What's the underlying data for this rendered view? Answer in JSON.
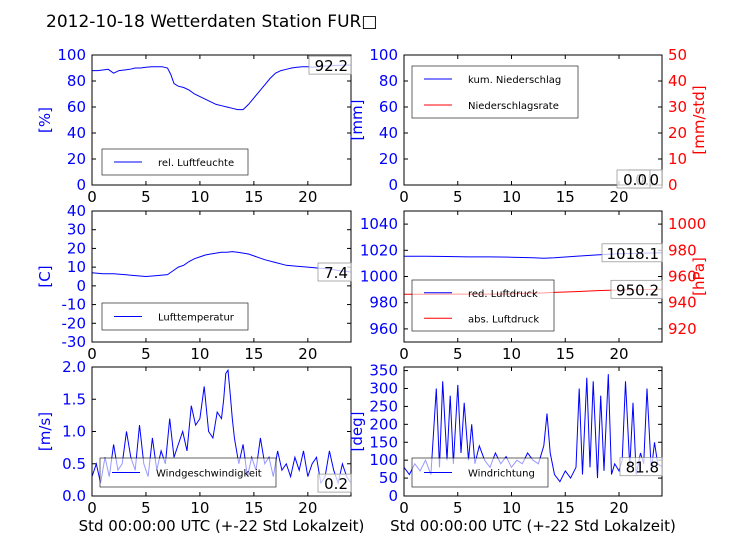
{
  "title": "2012-10-18 Wetterdaten Station FUR□",
  "colors": {
    "primary": "#0000ff",
    "secondary": "#ff0000",
    "axis": "#000000",
    "background": "#ffffff"
  },
  "chart_data": [
    {
      "id": "humidity",
      "type": "line",
      "ylabel": "[%]",
      "xlim": [
        0,
        24
      ],
      "ylim": [
        0,
        100
      ],
      "xticks": [
        0,
        5,
        10,
        15,
        20
      ],
      "yticks": [
        0,
        20,
        40,
        60,
        80,
        100
      ],
      "grid": false,
      "legend": "lower-left",
      "last_value_label": "92.2",
      "series": [
        {
          "name": "rel. Luftfeuchte",
          "color": "#0000ff",
          "x": [
            0,
            0.5,
            1,
            1.5,
            2,
            2.5,
            3,
            3.5,
            4,
            4.5,
            5,
            5.5,
            6,
            6.5,
            7,
            7.3,
            7.6,
            8,
            8.5,
            9,
            9.5,
            10,
            10.5,
            11,
            11.5,
            12,
            12.5,
            13,
            13.5,
            14,
            14.5,
            15,
            15.5,
            16,
            16.5,
            17,
            17.5,
            18,
            18.5,
            19,
            19.5,
            20,
            20.5,
            21,
            21.5,
            22,
            22.5,
            23,
            23.5,
            24
          ],
          "values": [
            88,
            88,
            88.5,
            89,
            86,
            88,
            88.5,
            89,
            90,
            90,
            90.5,
            91,
            91,
            91,
            90,
            85,
            78,
            76,
            75,
            73,
            70,
            68,
            66,
            64,
            62,
            61,
            60,
            59,
            58,
            58,
            62,
            67,
            72,
            77,
            82,
            86,
            88,
            89,
            90,
            90.5,
            91,
            91,
            90.5,
            91,
            91.5,
            91.5,
            92,
            92,
            92.2,
            92.2
          ]
        }
      ]
    },
    {
      "id": "precip",
      "type": "line",
      "ylabel": "[mm]",
      "ylabel_right": "[mm/std]",
      "xlim": [
        0,
        24
      ],
      "ylim": [
        0,
        100
      ],
      "ylim_right": [
        0,
        50
      ],
      "xticks": [
        0,
        5,
        10,
        15,
        20
      ],
      "yticks": [
        0,
        20,
        40,
        60,
        80,
        100
      ],
      "yticks_right": [
        0,
        10,
        20,
        30,
        40,
        50
      ],
      "grid": false,
      "legend": "top-left",
      "last_value_label": "0.0",
      "last_value_label_right": "0.0",
      "series": [
        {
          "name": "kum. Niederschlag",
          "color": "#0000ff",
          "axis": "left",
          "x": [
            0,
            24
          ],
          "values": [
            0,
            0
          ]
        },
        {
          "name": "Niederschlagsrate",
          "color": "#ff0000",
          "axis": "right",
          "x": [
            0,
            24
          ],
          "values": [
            0,
            0
          ]
        }
      ]
    },
    {
      "id": "temperature",
      "type": "line",
      "ylabel": "[C]",
      "xlim": [
        0,
        24
      ],
      "ylim": [
        -30,
        40
      ],
      "xticks": [
        0,
        5,
        10,
        15,
        20
      ],
      "yticks": [
        -30,
        -20,
        -10,
        0,
        10,
        20,
        30,
        40
      ],
      "grid": false,
      "legend": "lower-left",
      "last_value_label": "7.4",
      "series": [
        {
          "name": "Lufttemperatur",
          "color": "#0000ff",
          "x": [
            0,
            1,
            2,
            3,
            4,
            5,
            6,
            7,
            7.5,
            8,
            8.5,
            9,
            9.5,
            10,
            10.5,
            11,
            11.5,
            12,
            12.5,
            13,
            13.5,
            14,
            14.5,
            15,
            15.5,
            16,
            17,
            18,
            19,
            20,
            21,
            22,
            23,
            24
          ],
          "values": [
            7,
            6.5,
            6.5,
            6,
            5.5,
            5,
            5.5,
            6,
            8,
            10,
            11,
            13,
            14.5,
            15.5,
            16.5,
            17,
            17.5,
            18,
            18,
            18.3,
            18,
            17.5,
            17,
            16,
            15,
            14,
            12.5,
            11,
            10.5,
            10,
            9.5,
            9,
            8,
            7.4
          ]
        }
      ]
    },
    {
      "id": "pressure",
      "type": "line",
      "ylabel_right": "[hPa]",
      "xlim": [
        0,
        24
      ],
      "ylim": [
        950,
        1050
      ],
      "ylim_right": [
        910,
        1010
      ],
      "xticks": [
        0,
        5,
        10,
        15,
        20
      ],
      "yticks": [
        960,
        980,
        1000,
        1020,
        1040
      ],
      "yticks_right": [
        920,
        940,
        960,
        980,
        1000
      ],
      "grid": false,
      "legend": "bottom-left",
      "last_value_label": "1018.1",
      "last_value_label_right": "950.2",
      "series": [
        {
          "name": "red. Luftdruck",
          "color": "#0000ff",
          "axis": "left",
          "x": [
            0,
            2,
            4,
            6,
            8,
            10,
            12,
            13,
            14,
            16,
            18,
            20,
            22,
            24
          ],
          "values": [
            1015.5,
            1015.5,
            1015.3,
            1015,
            1015,
            1014.7,
            1014.3,
            1014,
            1014.3,
            1015.5,
            1016.5,
            1017.3,
            1017.8,
            1018.1
          ]
        },
        {
          "name": "abs. Luftdruck",
          "color": "#ff0000",
          "axis": "right",
          "x": [
            0,
            2,
            4,
            6,
            8,
            10,
            12,
            13,
            14,
            16,
            18,
            20,
            22,
            24
          ],
          "values": [
            946.5,
            946.5,
            946.6,
            946.6,
            946.6,
            946.8,
            947.3,
            947.5,
            947.9,
            948.5,
            949.2,
            949.7,
            950,
            950.2
          ]
        }
      ]
    },
    {
      "id": "windspeed",
      "type": "line",
      "ylabel": "[m/s]",
      "xlabel": "Std 00:00:00 UTC (+-22 Std Lokalzeit)",
      "xlim": [
        0,
        24
      ],
      "ylim": [
        0,
        2.0
      ],
      "xticks": [
        0,
        5,
        10,
        15,
        20
      ],
      "yticks": [
        0.0,
        0.5,
        1.0,
        1.5,
        2.0
      ],
      "grid": false,
      "legend": "bottom-center",
      "last_value_label": "0.2",
      "series": [
        {
          "name": "Windgeschwindigkeit",
          "color": "#0000ff",
          "x": [
            0,
            0.4,
            0.8,
            1.2,
            1.6,
            2,
            2.4,
            2.8,
            3.2,
            3.6,
            4,
            4.4,
            4.8,
            5.2,
            5.6,
            6,
            6.4,
            6.8,
            7.2,
            7.6,
            8,
            8.4,
            8.8,
            9.2,
            9.6,
            10,
            10.4,
            10.8,
            11.2,
            11.6,
            12,
            12.2,
            12.4,
            12.6,
            12.8,
            13,
            13.2,
            13.6,
            14,
            14.4,
            14.8,
            15.2,
            15.6,
            16,
            16.4,
            16.8,
            17.2,
            17.6,
            18,
            18.4,
            18.8,
            19.2,
            19.6,
            20,
            20.4,
            20.8,
            21.2,
            21.6,
            22,
            22.4,
            22.8,
            23.2,
            23.6,
            24
          ],
          "values": [
            0.3,
            0.5,
            0.2,
            0.6,
            0.3,
            0.8,
            0.4,
            0.5,
            1.0,
            0.6,
            0.4,
            1.1,
            0.5,
            0.3,
            0.9,
            0.4,
            0.7,
            0.5,
            1.2,
            0.6,
            0.8,
            1.0,
            0.7,
            1.4,
            1.1,
            1.2,
            1.7,
            1.0,
            0.9,
            1.3,
            1.2,
            1.5,
            1.9,
            1.95,
            1.6,
            1.2,
            0.9,
            0.5,
            0.8,
            0.3,
            0.6,
            0.4,
            0.9,
            0.5,
            0.6,
            0.3,
            0.7,
            0.4,
            0.5,
            0.3,
            0.6,
            0.4,
            0.7,
            0.3,
            0.5,
            0.6,
            0.2,
            0.3,
            0.7,
            0.4,
            0.2,
            0.5,
            0.3,
            0.2
          ]
        }
      ]
    },
    {
      "id": "winddir",
      "type": "line",
      "ylabel": "[deg]",
      "xlabel": "Std 00:00:00 UTC (+-22 Std Lokalzeit)",
      "xlim": [
        0,
        24
      ],
      "ylim": [
        0,
        360
      ],
      "xticks": [
        0,
        5,
        10,
        15,
        20
      ],
      "yticks": [
        0,
        50,
        100,
        150,
        200,
        250,
        300,
        350
      ],
      "grid": false,
      "legend": "bottom-center",
      "last_value_label": "81.8",
      "series": [
        {
          "name": "Windrichtung",
          "color": "#0000ff",
          "x": [
            0,
            0.5,
            1,
            1.5,
            2,
            2.5,
            3,
            3.3,
            3.6,
            4,
            4.3,
            4.6,
            5,
            5.3,
            5.6,
            6,
            6.3,
            6.6,
            7,
            7.5,
            8,
            8.5,
            9,
            9.5,
            10,
            10.5,
            11,
            11.5,
            12,
            12.5,
            13,
            13.3,
            13.6,
            14,
            14.5,
            15,
            15.5,
            16,
            16.3,
            16.6,
            17,
            17.3,
            17.6,
            18,
            18.3,
            18.6,
            19,
            19.3,
            19.6,
            20,
            20.3,
            20.6,
            21,
            21.3,
            21.6,
            22,
            22.3,
            22.6,
            23,
            23.3,
            23.6,
            24
          ],
          "values": [
            80,
            60,
            90,
            70,
            100,
            60,
            300,
            80,
            320,
            100,
            280,
            90,
            310,
            120,
            260,
            100,
            200,
            90,
            140,
            100,
            80,
            120,
            90,
            110,
            80,
            100,
            90,
            120,
            100,
            90,
            140,
            230,
            120,
            60,
            40,
            70,
            50,
            80,
            300,
            60,
            330,
            80,
            320,
            50,
            280,
            70,
            340,
            60,
            90,
            70,
            100,
            320,
            80,
            260,
            60,
            120,
            90,
            300,
            70,
            150,
            90,
            81.8
          ]
        }
      ]
    }
  ]
}
